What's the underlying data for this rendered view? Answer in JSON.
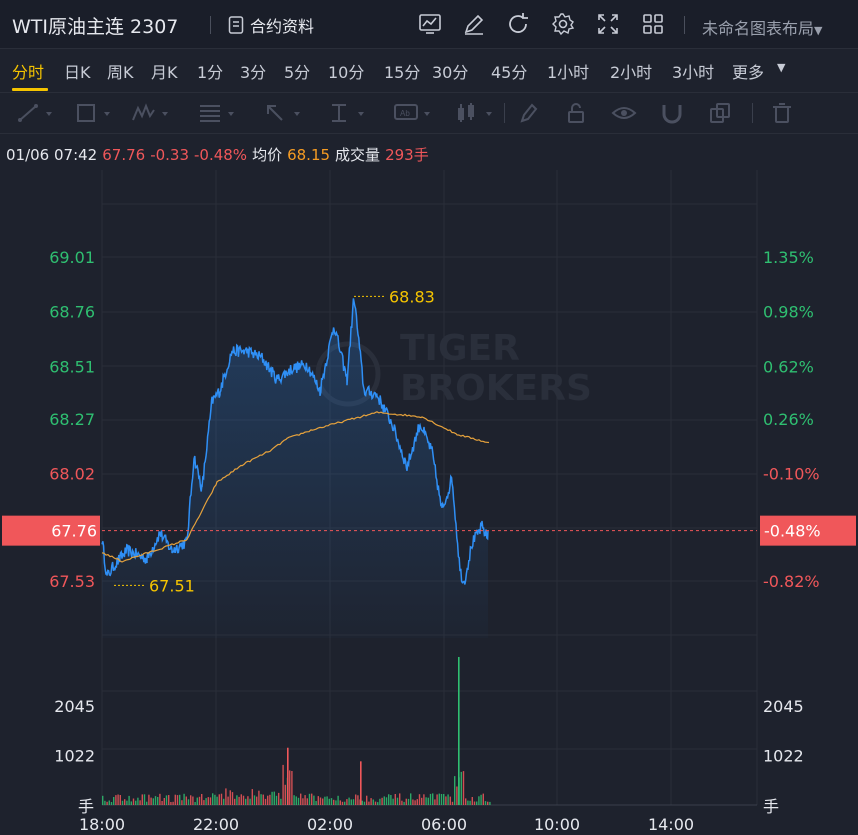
{
  "header": {
    "title": "WTI原油主连 2307",
    "contract_info": "合约资料",
    "layout_name": "未命名图表布局",
    "icons": [
      "chart-icon",
      "draw-icon",
      "refresh-icon",
      "settings-icon",
      "fullscreen-icon",
      "grid-layout-icon"
    ]
  },
  "periods": [
    "分时",
    "日K",
    "周K",
    "月K",
    "1分",
    "3分",
    "5分",
    "10分",
    "15分",
    "30分",
    "45分",
    "1小时",
    "2小时",
    "3小时",
    "更多"
  ],
  "active_period": "分时",
  "drawing_tools": [
    "trend-line-icon",
    "rectangle-icon",
    "pattern-icon",
    "fib-icon",
    "arrow-icon",
    "measure-icon",
    "text-icon",
    "candle-icon",
    "pen-icon",
    "lock-icon",
    "eye-icon",
    "magnet-icon",
    "copy-icon",
    "trash-icon"
  ],
  "info": {
    "datetime": "01/06 07:42",
    "price": "67.76",
    "change": "-0.33",
    "change_pct": "-0.48%",
    "avg_label": "均价",
    "avg_value": "68.15",
    "volume_label": "成交量",
    "volume_value": "293手"
  },
  "watermark": [
    "TIGER",
    "BROKERS"
  ],
  "chart_data": {
    "type": "line",
    "y_ticks_left": [
      "69.01",
      "68.76",
      "68.51",
      "68.27",
      "68.02",
      "67.53"
    ],
    "y_ticks_right": [
      "1.35%",
      "0.98%",
      "0.62%",
      "0.26%",
      "-0.10%",
      "-0.82%"
    ],
    "current_price_label": "67.76",
    "current_pct_label": "-0.48%",
    "high_label": "68.83",
    "low_label": "67.51",
    "ylim": [
      67.25,
      69.3
    ],
    "x_ticks": [
      "18:00",
      "22:00",
      "02:00",
      "06:00",
      "10:00",
      "14:00"
    ],
    "volume_ticks": [
      "2045",
      "1022"
    ],
    "volume_unit": "手",
    "volume_max": 3400,
    "colors": {
      "price": "#2f8ff5",
      "avg": "#e6a23c",
      "up": "#2fbf71",
      "down": "#f0575a"
    }
  }
}
